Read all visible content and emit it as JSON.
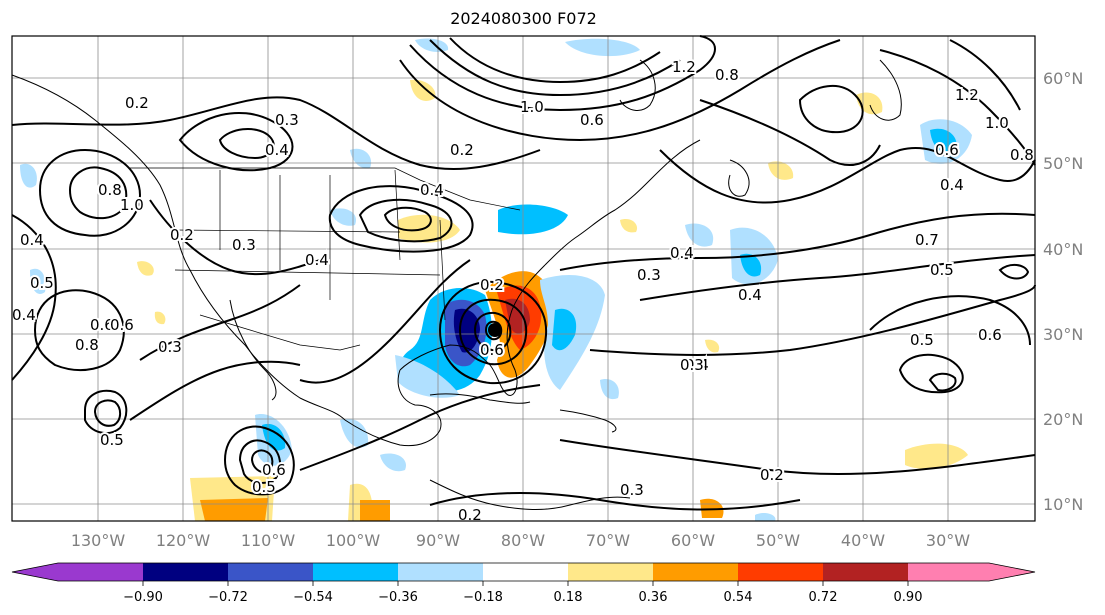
{
  "title": "2024080300 F072",
  "lon_labels": [
    "130°W",
    "120°W",
    "110°W",
    "100°W",
    "90°W",
    "80°W",
    "70°W",
    "60°W",
    "50°W",
    "40°W",
    "30°W"
  ],
  "lat_labels": [
    "60°N",
    "50°N",
    "40°N",
    "30°N",
    "20°N",
    "10°N"
  ],
  "colorbar": {
    "ticks": [
      "−0.90",
      "−0.72",
      "−0.54",
      "−0.36",
      "−0.18",
      "0.18",
      "0.36",
      "0.54",
      "0.72",
      "0.90"
    ],
    "colors": [
      "#9a39cf",
      "#000080",
      "#3a55c8",
      "#00bfff",
      "#b0e0ff",
      "#ffffff",
      "#ffe88a",
      "#ff9c00",
      "#ff3c00",
      "#b22222",
      "#ff7fb0"
    ]
  },
  "contour_labels": [
    "0.2",
    "0.4",
    "0.3",
    "1.0",
    "0.6",
    "0.2",
    "1.2",
    "0.8",
    "1.0",
    "0.6",
    "1.2",
    "1.0",
    "0.8",
    "0.6",
    "0.4",
    "0.8",
    "0.4",
    "0.4",
    "0.3",
    "0.2",
    "0.4",
    "0.5",
    "0.4",
    "0.4",
    "0.2",
    "0.8",
    "0.6",
    "0.3",
    "0.3",
    "0.4",
    "0.5",
    "0.7",
    "0.5",
    "0.4",
    "0.5",
    "0.6",
    "0.3",
    "0.5",
    "0.6",
    "0.6",
    "0.2",
    "0.3",
    "0.2",
    "1.0"
  ],
  "colors": {
    "frame": "#000000",
    "grid": "#8c8c8c",
    "tick_label": "#808080"
  }
}
